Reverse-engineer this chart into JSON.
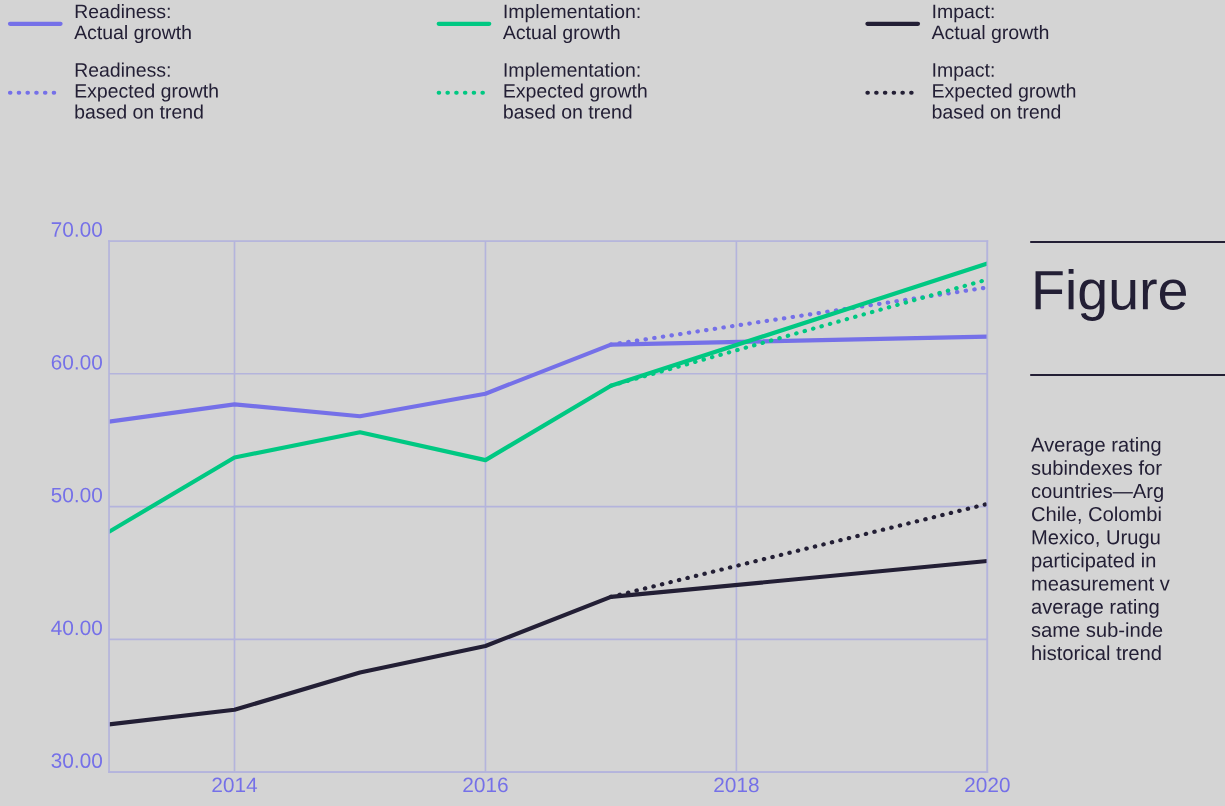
{
  "chart_data": {
    "type": "line",
    "series": [
      {
        "name": "Readiness:\nActual growth",
        "color": "#7570e8",
        "line_style": "solid",
        "x": [
          2013,
          2014,
          2015,
          2016,
          2017,
          2020
        ],
        "values": [
          56.4,
          57.7,
          56.8,
          58.5,
          62.2,
          62.8
        ]
      },
      {
        "name": "Readiness:\nExpected growth\nbased on trend",
        "color": "#7570e8",
        "line_style": "dotted",
        "x": [
          2017,
          2020
        ],
        "values": [
          62.2,
          66.5
        ]
      },
      {
        "name": "Implementation:\nActual growth",
        "color": "#00c882",
        "line_style": "solid",
        "x": [
          2013,
          2014,
          2015,
          2016,
          2017,
          2020
        ],
        "values": [
          48.1,
          53.7,
          55.6,
          53.5,
          59.1,
          68.3
        ]
      },
      {
        "name": "Implementation:\nExpected growth\nbased on trend",
        "color": "#00c882",
        "line_style": "dotted",
        "x": [
          2017,
          2020
        ],
        "values": [
          59.1,
          67.1
        ]
      },
      {
        "name": "Impact:\nActual growth",
        "color": "#231f35",
        "line_style": "solid",
        "x": [
          2013,
          2014,
          2015,
          2016,
          2017,
          2020
        ],
        "values": [
          33.6,
          34.7,
          37.5,
          39.5,
          43.2,
          45.9
        ]
      },
      {
        "name": "Impact:\nExpected growth\nbased on trend",
        "color": "#231f35",
        "line_style": "dotted",
        "x": [
          2017,
          2020
        ],
        "values": [
          43.2,
          50.2
        ]
      }
    ],
    "xlim": [
      2013,
      2020
    ],
    "xticks": [
      2014,
      2016,
      2018,
      2020
    ],
    "ylim": [
      30,
      70
    ],
    "yticks": [
      {
        "value": 30,
        "label": "30.00"
      },
      {
        "value": 40,
        "label": "40.00"
      },
      {
        "value": 50,
        "label": "50.00"
      },
      {
        "value": 60,
        "label": "60.00"
      },
      {
        "value": 70,
        "label": "70.00"
      }
    ],
    "grid": true,
    "legend": "top",
    "marker": "none",
    "annotations": [
      "Figure",
      "Average rating\nsubindexes for\ncountries—Arg\nChile, Colombi\nMexico, Urugu\nparticipated in\nmeasurement v\naverage rating\nsame sub-inde\nhistorical trend"
    ]
  }
}
